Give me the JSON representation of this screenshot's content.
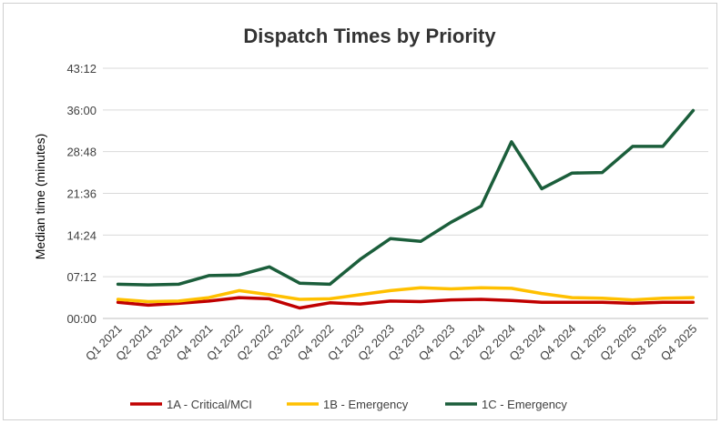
{
  "chart_data": {
    "type": "line",
    "title": "Dispatch Times by Priority",
    "xlabel": "",
    "ylabel": "Median time (minutes)",
    "y_unit": "minutes",
    "ylim": [
      0,
      43.2
    ],
    "y_ticks": [
      {
        "value": 0,
        "label": "00:00"
      },
      {
        "value": 7.2,
        "label": "07:12"
      },
      {
        "value": 14.4,
        "label": "14:24"
      },
      {
        "value": 21.6,
        "label": "21:36"
      },
      {
        "value": 28.8,
        "label": "28:48"
      },
      {
        "value": 36,
        "label": "36:00"
      },
      {
        "value": 43.2,
        "label": "43:12"
      }
    ],
    "grid": "horizontal",
    "legend_position": "bottom",
    "categories": [
      "Q1 2021",
      "Q2 2021",
      "Q3 2021",
      "Q4 2021",
      "Q1 2022",
      "Q2 2022",
      "Q3 2022",
      "Q4 2022",
      "Q1 2023",
      "Q2 2023",
      "Q3 2023",
      "Q4 2023",
      "Q1 2024",
      "Q2 2024",
      "Q3 2024",
      "Q4 2024",
      "Q1 2025",
      "Q2 2025",
      "Q3 2025",
      "Q4 2025"
    ],
    "series": [
      {
        "name": "1A - Critical/MCI",
        "color": "#c00000",
        "values": [
          2.8,
          2.3,
          2.6,
          3.0,
          3.6,
          3.4,
          1.8,
          2.7,
          2.5,
          3.0,
          2.9,
          3.2,
          3.3,
          3.1,
          2.8,
          2.8,
          2.8,
          2.6,
          2.8,
          2.8
        ]
      },
      {
        "name": "1B - Emergency",
        "color": "#ffc000",
        "values": [
          3.3,
          2.9,
          3.0,
          3.6,
          4.8,
          4.1,
          3.3,
          3.4,
          4.1,
          4.8,
          5.3,
          5.1,
          5.3,
          5.2,
          4.3,
          3.6,
          3.5,
          3.2,
          3.5,
          3.6
        ]
      },
      {
        "name": "1C - Emergency",
        "color": "#1b5e3b",
        "values": [
          5.9,
          5.8,
          5.9,
          7.4,
          7.5,
          8.9,
          6.1,
          5.9,
          10.2,
          13.8,
          13.3,
          16.6,
          19.4,
          30.5,
          22.4,
          25.1,
          25.2,
          29.7,
          29.7,
          35.9
        ]
      }
    ]
  }
}
